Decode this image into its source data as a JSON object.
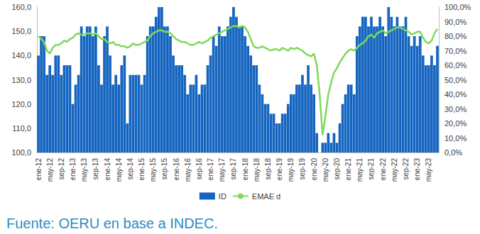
{
  "chart_data": {
    "type": "bar",
    "source": "Fuente: OERU en base a INDEC.",
    "categories": [
      "ene-12",
      null,
      null,
      null,
      "may-12",
      null,
      null,
      null,
      "sep-12",
      null,
      null,
      null,
      "ene-13",
      null,
      null,
      null,
      "may-13",
      null,
      null,
      null,
      "sep-13",
      null,
      null,
      null,
      "ene-14",
      null,
      null,
      null,
      "may-14",
      null,
      null,
      null,
      "sep-14",
      null,
      null,
      null,
      "ene-15",
      null,
      null,
      null,
      "may-15",
      null,
      null,
      null,
      "sep-15",
      null,
      null,
      null,
      "ene-16",
      null,
      null,
      null,
      "may-16",
      null,
      null,
      null,
      "sep-16",
      null,
      null,
      null,
      "ene-17",
      null,
      null,
      null,
      "may-17",
      null,
      null,
      null,
      "sep-17",
      null,
      null,
      null,
      "ene-18",
      null,
      null,
      null,
      "may-18",
      null,
      null,
      null,
      "sep-18",
      null,
      null,
      null,
      "ene-19",
      null,
      null,
      null,
      "may-19",
      null,
      null,
      null,
      "sep-19",
      null,
      null,
      null,
      "ene-20",
      null,
      null,
      null,
      "may-20",
      null,
      null,
      null,
      "sep-20",
      null,
      null,
      null,
      "ene-21",
      null,
      null,
      null,
      "may-21",
      null,
      null,
      null,
      "sep-21",
      null,
      null,
      null,
      "ene-22",
      null,
      null,
      null,
      "may-22",
      null,
      null,
      null,
      "sep-22",
      null,
      null,
      null,
      "ene-23",
      null,
      null,
      null,
      "may-23",
      null,
      null,
      null
    ],
    "series": [
      {
        "name": "ID",
        "type": "bar",
        "color": "#1565c0",
        "values": [
          140,
          148,
          148,
          132,
          136,
          132,
          140,
          140,
          132,
          136,
          136,
          136,
          120,
          128,
          132,
          152,
          148,
          152,
          152,
          148,
          152,
          136,
          128,
          148,
          152,
          140,
          128,
          132,
          128,
          136,
          140,
          112,
          132,
          132,
          132,
          132,
          128,
          132,
          148,
          152,
          152,
          156,
          160,
          160,
          152,
          152,
          148,
          140,
          136,
          136,
          136,
          132,
          124,
          128,
          128,
          132,
          124,
          128,
          128,
          136,
          140,
          148,
          144,
          152,
          148,
          148,
          152,
          156,
          160,
          156,
          152,
          152,
          148,
          144,
          140,
          136,
          136,
          128,
          124,
          120,
          120,
          116,
          116,
          112,
          112,
          116,
          116,
          120,
          124,
          124,
          128,
          128,
          132,
          128,
          136,
          128,
          124,
          108,
          100,
          104,
          104,
          108,
          104,
          108,
          104,
          112,
          120,
          124,
          128,
          128,
          124,
          148,
          152,
          156,
          156,
          152,
          156,
          152,
          152,
          156,
          152,
          148,
          160,
          156,
          152,
          156,
          152,
          152,
          156,
          148,
          144,
          148,
          144,
          148,
          140,
          136,
          136,
          140,
          136,
          144
        ]
      },
      {
        "name": "EMAE d",
        "type": "line",
        "axis": "y2",
        "color": "#7ed957",
        "values": [
          80,
          78,
          76,
          70,
          68,
          72,
          74,
          74,
          75,
          77,
          76,
          78,
          79,
          81,
          82,
          81,
          81,
          82,
          82,
          81,
          82,
          80,
          78,
          78,
          76,
          75,
          76,
          74,
          74,
          73,
          73,
          72,
          73,
          75,
          74,
          74,
          75,
          76,
          77,
          80,
          82,
          83,
          84,
          84,
          83,
          83,
          82,
          80,
          78,
          77,
          76,
          76,
          75,
          74,
          74,
          75,
          76,
          75,
          76,
          77,
          79,
          80,
          81,
          82,
          83,
          84,
          85,
          86,
          87,
          87,
          86,
          87,
          86,
          83,
          78,
          73,
          72,
          72,
          73,
          72,
          71,
          70,
          71,
          71,
          70,
          72,
          71,
          70,
          72,
          71,
          72,
          71,
          70,
          68,
          67,
          66,
          68,
          60,
          40,
          12,
          25,
          40,
          48,
          55,
          58,
          62,
          65,
          68,
          70,
          71,
          70,
          72,
          74,
          75,
          77,
          80,
          81,
          79,
          82,
          83,
          84,
          82,
          83,
          84,
          85,
          86,
          86,
          85,
          84,
          83,
          81,
          82,
          83,
          83,
          79,
          76,
          75,
          77,
          82,
          85
        ]
      }
    ],
    "ylim": [
      100,
      160
    ],
    "yticks": [
      {
        "value": 100,
        "label": "100,0"
      },
      {
        "value": 110,
        "label": "110,0"
      },
      {
        "value": 120,
        "label": "120,0"
      },
      {
        "value": 130,
        "label": "130,0"
      },
      {
        "value": 140,
        "label": "140,0"
      },
      {
        "value": 150,
        "label": "150,0"
      },
      {
        "value": 160,
        "label": "160,0"
      }
    ],
    "y2lim": [
      0,
      100
    ],
    "y2ticks": [
      {
        "value": 0,
        "label": "0,0%"
      },
      {
        "value": 10,
        "label": "10,0%"
      },
      {
        "value": 20,
        "label": "20,0%"
      },
      {
        "value": 30,
        "label": "30,0%"
      },
      {
        "value": 40,
        "label": "40,0%"
      },
      {
        "value": 50,
        "label": "50,0%"
      },
      {
        "value": 60,
        "label": "60,0%"
      },
      {
        "value": 70,
        "label": "70,0%"
      },
      {
        "value": 80,
        "label": "80,0%"
      },
      {
        "value": 90,
        "label": "90,0%"
      },
      {
        "value": 100,
        "label": "100,0%"
      }
    ],
    "grid": false,
    "legend": "bottom"
  }
}
